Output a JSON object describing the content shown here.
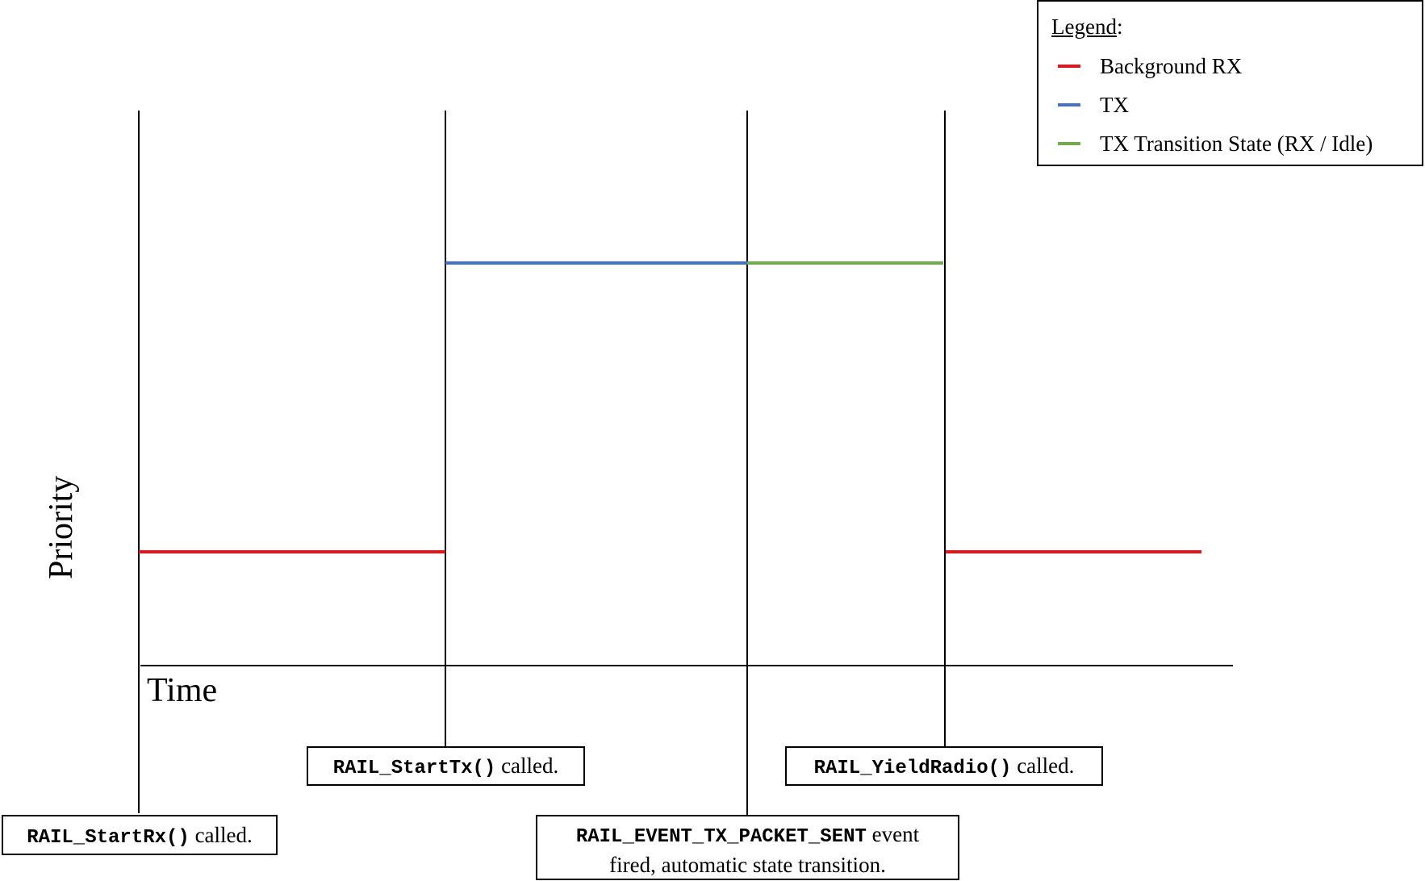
{
  "diagram": {
    "axis": {
      "x_label": "Time",
      "y_label": "Priority"
    },
    "legend": {
      "title": "Legend",
      "title_suffix": ":",
      "items": [
        {
          "label": "Background RX",
          "color": "#e8141c"
        },
        {
          "label": "TX",
          "color": "#4472c4"
        },
        {
          "label": "TX Transition State (RX / Idle)",
          "color": "#70ad47"
        }
      ]
    },
    "callouts": {
      "start_rx": {
        "code": "RAIL_StartRx()",
        "text": " called."
      },
      "start_tx": {
        "code": "RAIL_StartTx()",
        "text": " called."
      },
      "packet_sent": {
        "code": "RAIL_EVENT_TX_PACKET_SENT",
        "text_line1": " event",
        "text_line2": "fired, automatic state transition."
      },
      "yield_radio": {
        "code": "RAIL_YieldRadio()",
        "text": " called."
      }
    },
    "colors": {
      "background_rx": "#e8141c",
      "tx": "#4472c4",
      "tx_transition": "#70ad47",
      "axis": "#000000"
    }
  }
}
